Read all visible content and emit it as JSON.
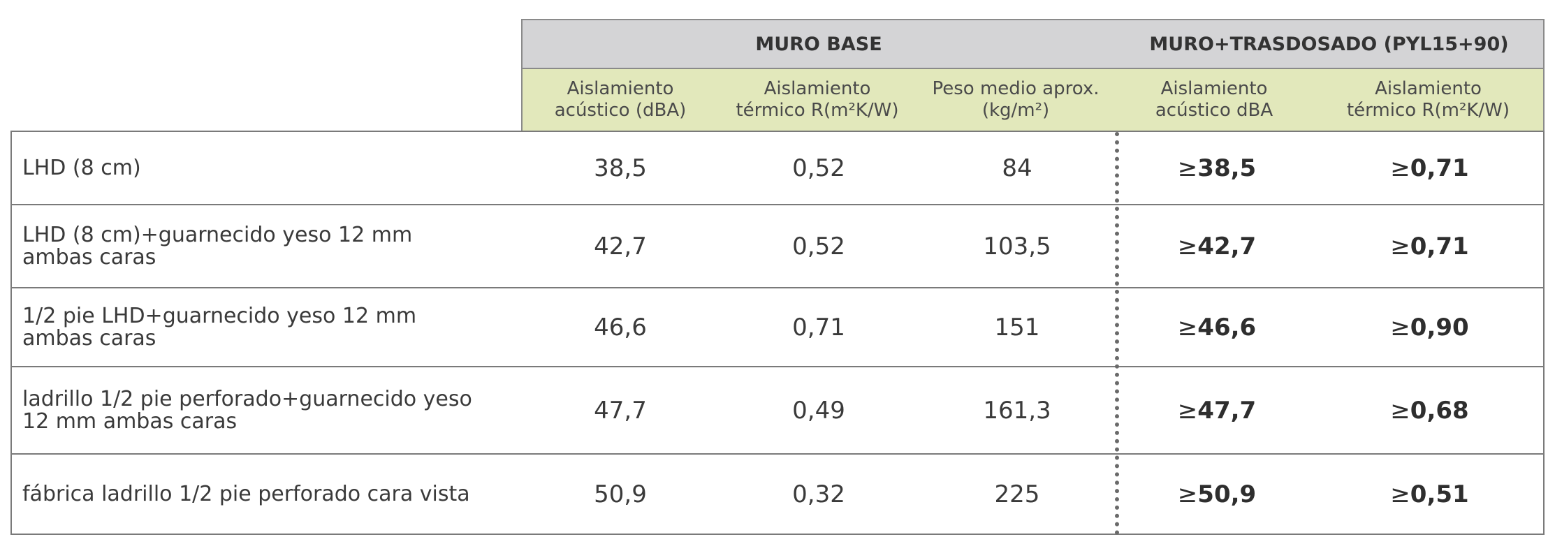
{
  "header": {
    "group_base": "MURO BASE",
    "group_trasdosado": "MURO+TRASDOSADO (PYL15+90)",
    "columns": [
      {
        "line1": "Aislamiento",
        "line2": "acústico (dBA)"
      },
      {
        "line1": "Aislamiento",
        "line2": "térmico  R(m²K/W)"
      },
      {
        "line1": "Peso medio aprox.",
        "line2": "(kg/m²)"
      },
      {
        "line1": "Aislamiento",
        "line2": "acústico dBA"
      },
      {
        "line1": "Aislamiento",
        "line2": "térmico  R(m²K/W)"
      }
    ]
  },
  "rows": [
    {
      "label1": "LHD (8 cm)",
      "label2": "",
      "acustico": "38,5",
      "termico": "0,52",
      "peso": "84",
      "ge": "≥",
      "tr_acustico": "38,5",
      "tr_termico": "0,71"
    },
    {
      "label1": "LHD (8 cm)+guarnecido yeso 12 mm",
      "label2": "ambas caras",
      "acustico": "42,7",
      "termico": "0,52",
      "peso": "103,5",
      "ge": "≥",
      "tr_acustico": "42,7",
      "tr_termico": "0,71"
    },
    {
      "label1": "1/2 pie LHD+guarnecido yeso 12 mm",
      "label2": "ambas caras",
      "acustico": "46,6",
      "termico": "0,71",
      "peso": "151",
      "ge": "≥",
      "tr_acustico": "46,6",
      "tr_termico": "0,90"
    },
    {
      "label1": "ladrillo 1/2 pie perforado+guarnecido yeso",
      "label2": "12 mm ambas caras",
      "acustico": "47,7",
      "termico": "0,49",
      "peso": "161,3",
      "ge": "≥",
      "tr_acustico": "47,7",
      "tr_termico": "0,68"
    },
    {
      "label1": "fábrica ladrillo 1/2 pie perforado cara vista",
      "label2": "",
      "acustico": "50,9",
      "termico": "0,32",
      "peso": "225",
      "ge": "≥",
      "tr_acustico": "50,9",
      "tr_termico": "0,51"
    }
  ],
  "colors": {
    "group_header_bg": "#d4d4d6",
    "sub_header_bg": "#e2e8bb",
    "border": "#7a7a7a"
  }
}
